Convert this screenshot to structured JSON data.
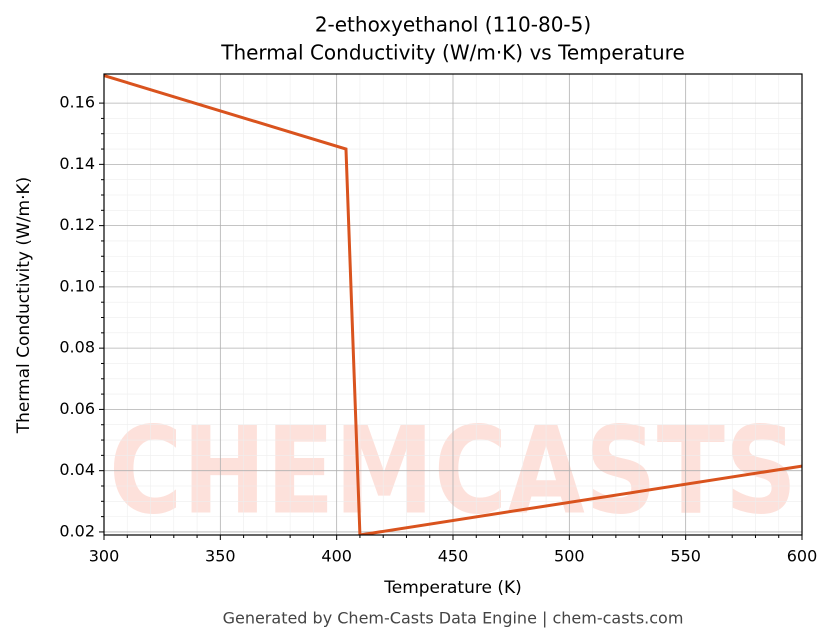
{
  "chart_data": {
    "type": "line",
    "title": [
      "2-ethoxyethanol (110-80-5)",
      "Thermal Conductivity (W/m·K) vs Temperature"
    ],
    "x_label": "Temperature (K)",
    "y_label": "Thermal Conductivity (W/m·K)",
    "footer": "Generated by Chem-Casts Data Engine | chem-casts.com",
    "watermark": "CHEMCASTS",
    "x": [
      300,
      404,
      410,
      600
    ],
    "series": [
      {
        "name": "Thermal Conductivity",
        "color": "#d9531e",
        "values": [
          0.169,
          0.145,
          0.019,
          0.0415
        ]
      }
    ],
    "xlim": [
      300,
      600
    ],
    "xticks": [
      300,
      350,
      400,
      450,
      500,
      550,
      600
    ],
    "ylim": [
      0.019,
      0.1695
    ],
    "yticks": [
      0.02,
      0.04,
      0.06,
      0.08,
      {
        "value": 0.1,
        "label": "0.10"
      },
      0.12,
      0.14,
      0.16
    ],
    "grid": true
  }
}
